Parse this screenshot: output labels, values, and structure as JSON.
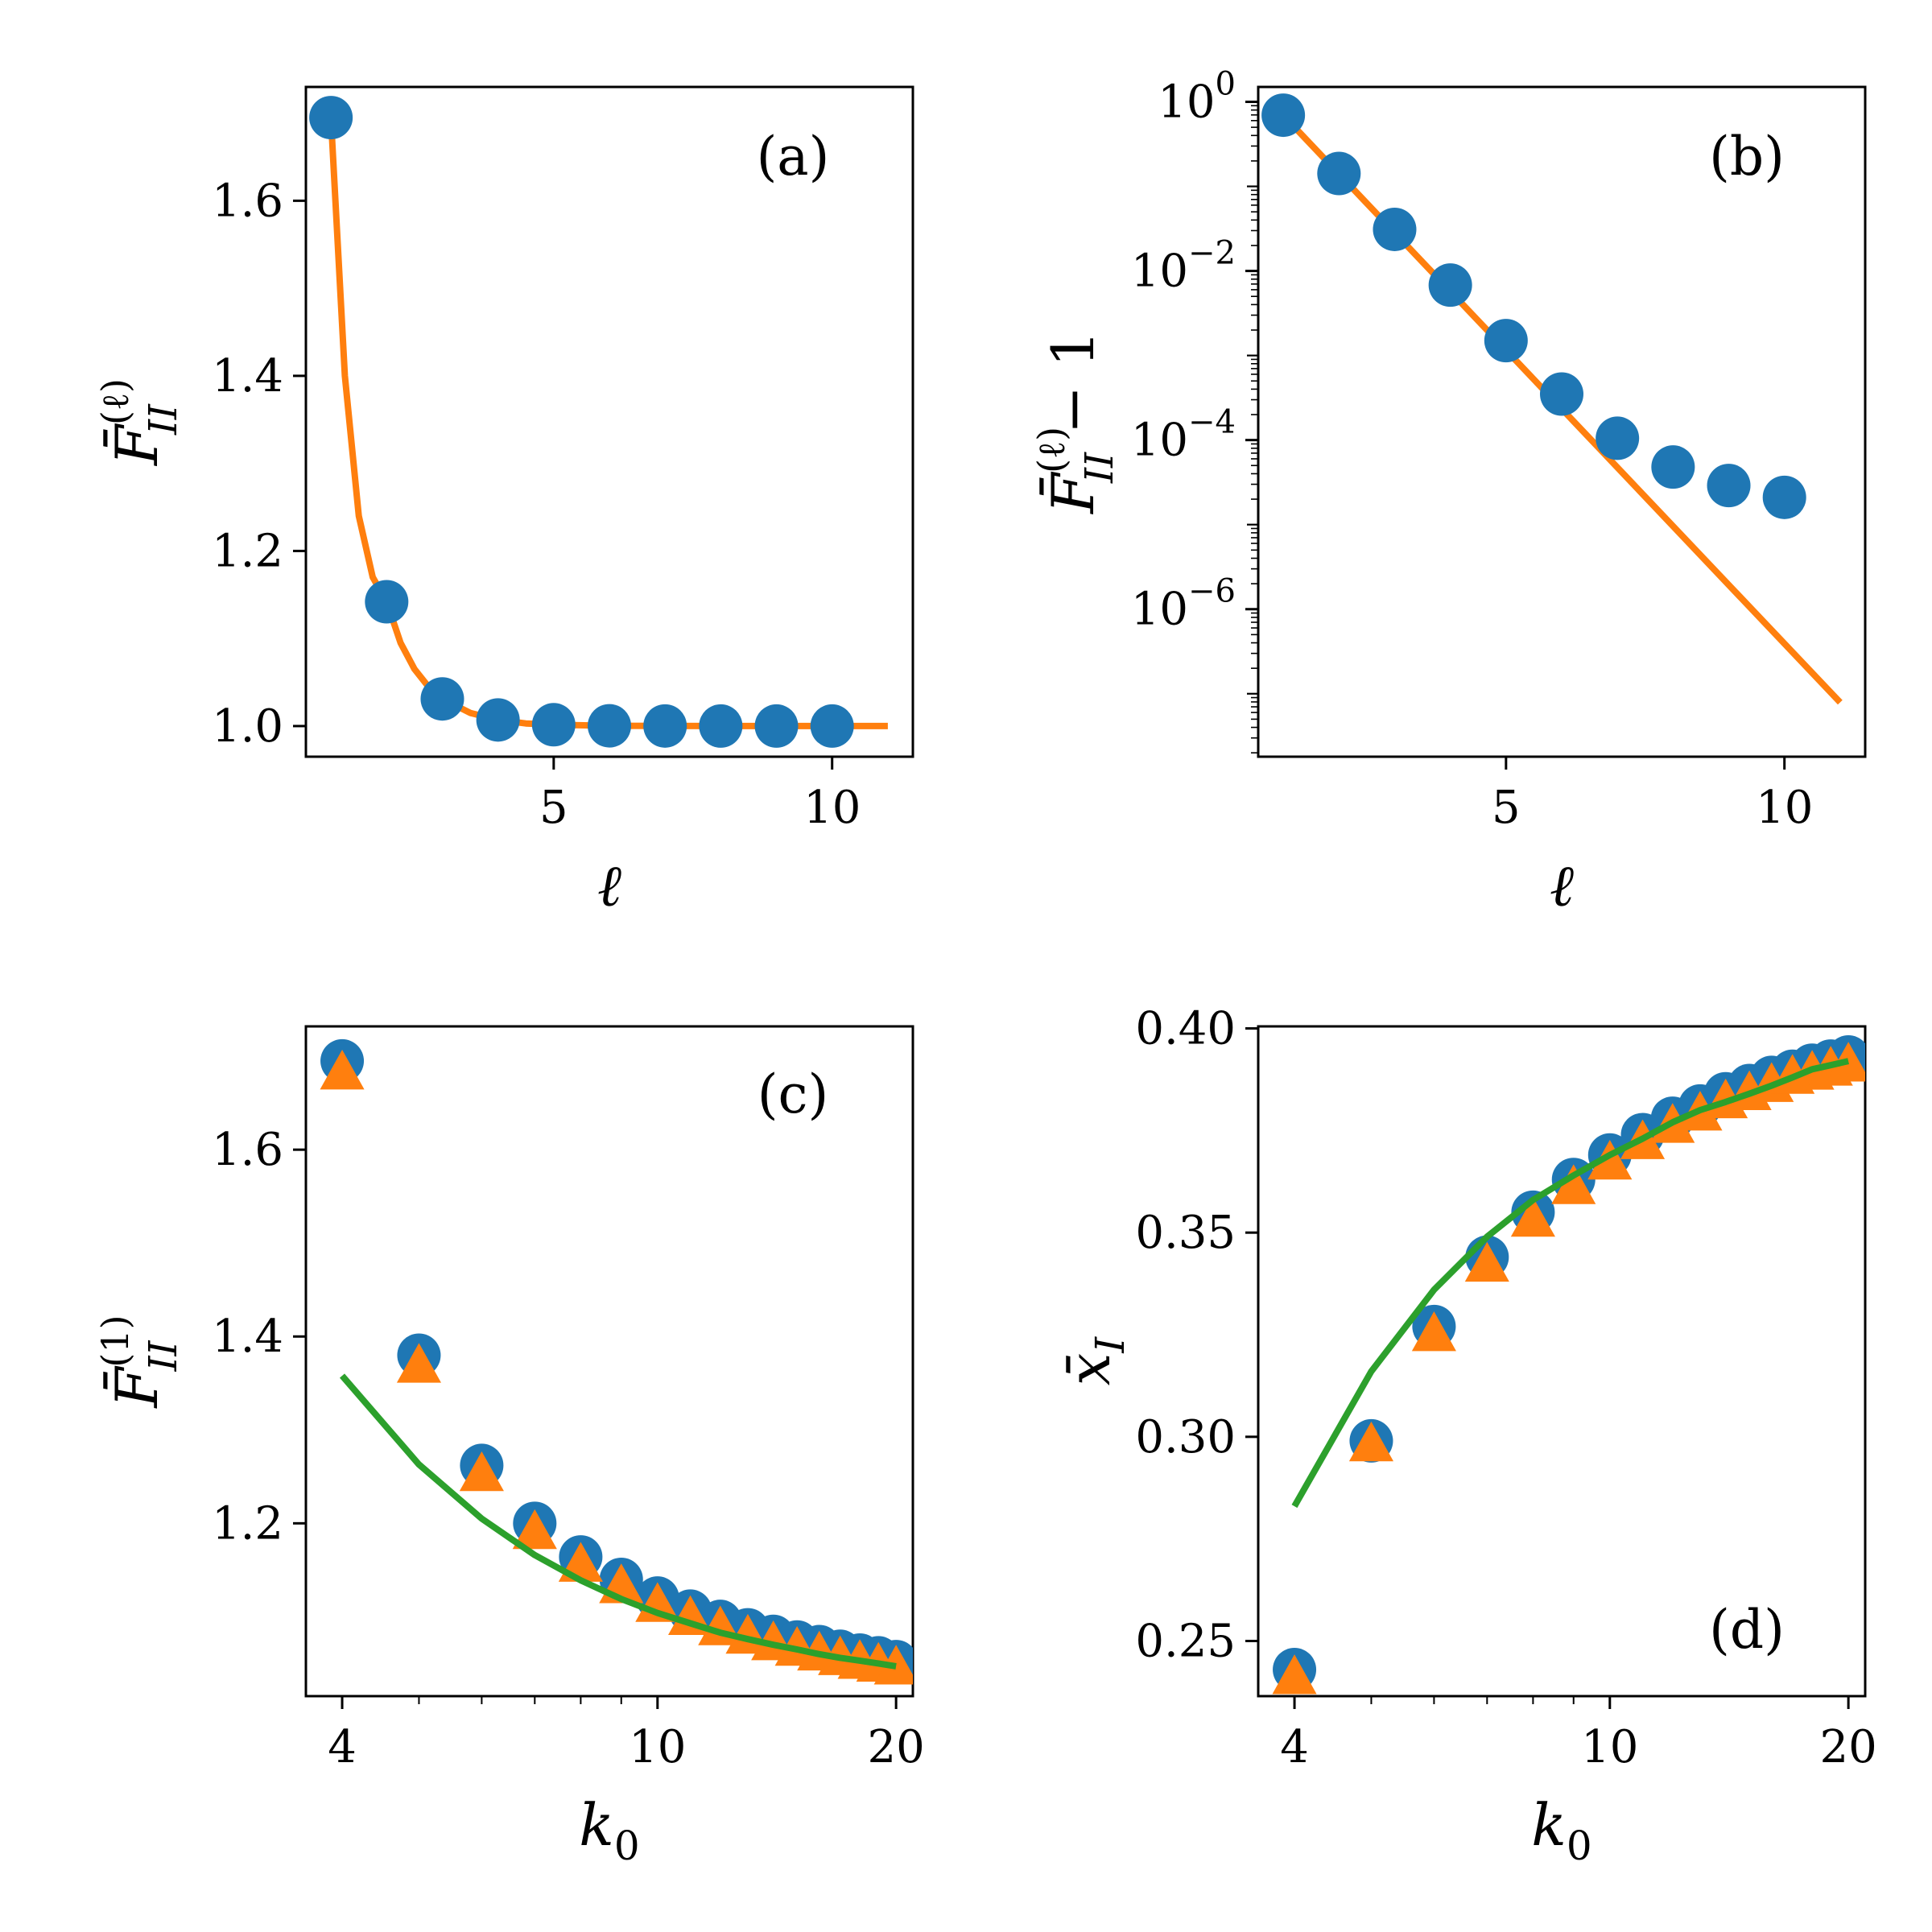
{
  "colors": {
    "circle": "#1f77b4",
    "triangle": "#ff7f0e",
    "line_a": "#ff7f0e",
    "line_c": "#2ca02c"
  },
  "chart_data": [
    {
      "id": "a",
      "type": "scatter",
      "panel_label": "(a)",
      "xlabel": "ℓ",
      "ylabel": {
        "main": "F̄",
        "sup": "(ℓ)",
        "sub": "II"
      },
      "xscale": "linear",
      "yscale": "linear",
      "xlim": [
        0.55,
        11.45
      ],
      "ylim": [
        0.965,
        1.73
      ],
      "xticks": [
        {
          "v": 5,
          "label": "5"
        },
        {
          "v": 10,
          "label": "10"
        }
      ],
      "yticks": [
        {
          "v": 1.0,
          "label": "1.0"
        },
        {
          "v": 1.2,
          "label": "1.2"
        },
        {
          "v": 1.4,
          "label": "1.4"
        },
        {
          "v": 1.6,
          "label": "1.6"
        }
      ],
      "grid": false,
      "series": [
        {
          "kind": "markers",
          "marker": "circle",
          "color": "#1f77b4",
          "x": [
            1,
            2,
            3,
            4,
            5,
            6,
            7,
            8,
            9,
            10
          ],
          "y": [
            1.695,
            1.142,
            1.031,
            1.007,
            1.0015,
            1.0003,
            1.0001,
            1.00004,
            1.00003,
            1.00002
          ]
        },
        {
          "kind": "line",
          "color": "#ff7f0e",
          "x": [
            1,
            1.25,
            1.5,
            1.75,
            2,
            2.25,
            2.5,
            2.75,
            3,
            3.5,
            4,
            4.5,
            5,
            6,
            7,
            8,
            9,
            10,
            11
          ],
          "y": [
            1.695,
            1.4,
            1.24,
            1.17,
            1.142,
            1.095,
            1.065,
            1.045,
            1.031,
            1.015,
            1.007,
            1.003,
            1.0015,
            1.0003,
            1.0001,
            1.00002,
            1.000005,
            1.000001,
            1.0000001
          ]
        }
      ]
    },
    {
      "id": "b",
      "type": "scatter",
      "panel_label": "(b)",
      "xlabel": "ℓ",
      "ylabel": {
        "main": "F̄",
        "sup": "(ℓ)",
        "sub": "II",
        "suffix": " − 1"
      },
      "xscale": "linear",
      "yscale": "log",
      "xlim": [
        0.55,
        11.45
      ],
      "ylim": [
        1.8e-08,
        1.5
      ],
      "xticks": [
        {
          "v": 5,
          "label": "5"
        },
        {
          "v": 10,
          "label": "10"
        }
      ],
      "yticks": [
        {
          "v": 1e-06,
          "base": "10",
          "exp": "−6"
        },
        {
          "v": 0.0001,
          "base": "10",
          "exp": "−4"
        },
        {
          "v": 0.01,
          "base": "10",
          "exp": "−2"
        },
        {
          "v": 1,
          "base": "10",
          "exp": "0"
        }
      ],
      "grid": false,
      "series": [
        {
          "kind": "markers",
          "marker": "circle",
          "color": "#1f77b4",
          "x": [
            1,
            2,
            3,
            4,
            5,
            6,
            7,
            8,
            9,
            10
          ],
          "y": [
            0.695,
            0.142,
            0.031,
            0.0068,
            0.0015,
            0.00035,
            0.000105,
            4.8e-05,
            2.9e-05,
            2.1e-05
          ]
        },
        {
          "kind": "line",
          "color": "#ff7f0e",
          "x": [
            1,
            11
          ],
          "y": [
            0.695,
            7.9e-08
          ]
        }
      ]
    },
    {
      "id": "c",
      "type": "scatter",
      "panel_label": "(c)",
      "xlabel": "k",
      "xlabel_sub": "0",
      "ylabel": {
        "main": "F̄",
        "sup": "(1)",
        "sub": "II"
      },
      "xscale": "log",
      "yscale": "linear",
      "xlim": [
        3.6,
        21.0
      ],
      "ylim": [
        1.015,
        1.732
      ],
      "xticks": [
        {
          "v": 4,
          "label": "4"
        },
        {
          "v": 10,
          "label": "10"
        },
        {
          "v": 20,
          "label": "20"
        }
      ],
      "yticks": [
        {
          "v": 1.2,
          "label": "1.2"
        },
        {
          "v": 1.4,
          "label": "1.4"
        },
        {
          "v": 1.6,
          "label": "1.6"
        }
      ],
      "grid": false,
      "series": [
        {
          "kind": "markers",
          "marker": "circle",
          "color": "#1f77b4",
          "x": [
            4,
            5,
            6,
            7,
            8,
            9,
            10,
            11,
            12,
            13,
            14,
            15,
            16,
            17,
            18,
            19,
            20
          ],
          "y": [
            1.695,
            1.38,
            1.262,
            1.2,
            1.164,
            1.14,
            1.12,
            1.106,
            1.095,
            1.086,
            1.079,
            1.073,
            1.068,
            1.063,
            1.059,
            1.056,
            1.052
          ]
        },
        {
          "kind": "markers",
          "marker": "triangle",
          "color": "#ff7f0e",
          "x": [
            4,
            5,
            6,
            7,
            8,
            9,
            10,
            11,
            12,
            13,
            14,
            15,
            16,
            17,
            18,
            19,
            20
          ],
          "y": [
            1.682,
            1.368,
            1.252,
            1.19,
            1.155,
            1.132,
            1.112,
            1.098,
            1.087,
            1.078,
            1.071,
            1.065,
            1.06,
            1.055,
            1.051,
            1.048,
            1.045
          ]
        },
        {
          "kind": "line",
          "color": "#2ca02c",
          "x": [
            4,
            5,
            6,
            7,
            8,
            9,
            10,
            11,
            12,
            13,
            14,
            15,
            16,
            17,
            18,
            19,
            20
          ],
          "y": [
            1.358,
            1.263,
            1.205,
            1.166,
            1.139,
            1.119,
            1.104,
            1.093,
            1.083,
            1.076,
            1.07,
            1.065,
            1.06,
            1.056,
            1.053,
            1.05,
            1.047
          ]
        }
      ]
    },
    {
      "id": "d",
      "type": "scatter",
      "panel_label": "(d)",
      "xlabel": "k",
      "xlabel_sub": "0",
      "ylabel": {
        "main": "x̄",
        "sub": "I"
      },
      "xscale": "log",
      "yscale": "linear",
      "xlim": [
        3.6,
        21.0
      ],
      "ylim": [
        0.2365,
        0.4005
      ],
      "xticks": [
        {
          "v": 4,
          "label": "4"
        },
        {
          "v": 10,
          "label": "10"
        },
        {
          "v": 20,
          "label": "20"
        }
      ],
      "yticks": [
        {
          "v": 0.25,
          "label": "0.25"
        },
        {
          "v": 0.3,
          "label": "0.30"
        },
        {
          "v": 0.35,
          "label": "0.35"
        },
        {
          "v": 0.4,
          "label": "0.40"
        }
      ],
      "grid": false,
      "series": [
        {
          "kind": "markers",
          "marker": "circle",
          "color": "#1f77b4",
          "x": [
            4,
            5,
            6,
            7,
            8,
            9,
            10,
            11,
            12,
            13,
            14,
            15,
            16,
            17,
            18,
            19,
            20
          ],
          "y": [
            0.243,
            0.299,
            0.327,
            0.344,
            0.355,
            0.363,
            0.369,
            0.374,
            0.378,
            0.381,
            0.384,
            0.386,
            0.388,
            0.3895,
            0.391,
            0.392,
            0.393
          ]
        },
        {
          "kind": "markers",
          "marker": "triangle",
          "color": "#ff7f0e",
          "x": [
            4,
            5,
            6,
            7,
            8,
            9,
            10,
            11,
            12,
            13,
            14,
            15,
            16,
            17,
            18,
            19,
            20
          ],
          "y": [
            0.241,
            0.298,
            0.325,
            0.342,
            0.353,
            0.361,
            0.367,
            0.372,
            0.376,
            0.379,
            0.382,
            0.384,
            0.386,
            0.388,
            0.389,
            0.39,
            0.391
          ]
        },
        {
          "kind": "line",
          "color": "#2ca02c",
          "x": [
            4,
            5,
            6,
            7,
            8,
            9,
            10,
            11,
            12,
            13,
            14,
            15,
            16,
            17,
            18,
            19,
            20
          ],
          "y": [
            0.283,
            0.316,
            0.336,
            0.349,
            0.358,
            0.364,
            0.369,
            0.373,
            0.377,
            0.38,
            0.382,
            0.384,
            0.386,
            0.388,
            0.39,
            0.391,
            0.392
          ]
        }
      ]
    }
  ]
}
